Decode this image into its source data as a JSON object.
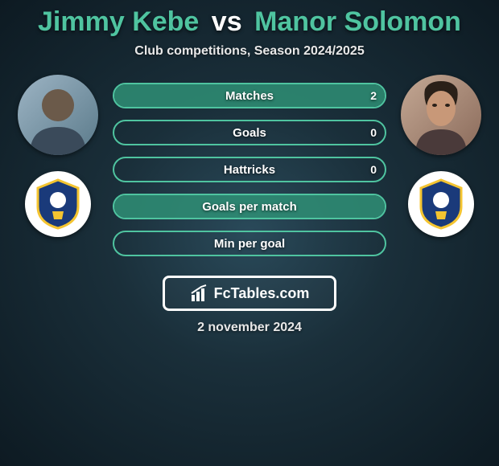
{
  "title": {
    "player1": "Jimmy Kebe",
    "vs": "vs",
    "player2": "Manor Solomon",
    "player1_color": "#4fc4a0",
    "player2_color": "#4fc4a0"
  },
  "subtitle": "Club competitions, Season 2024/2025",
  "accent_color": "#4fc4a0",
  "background": "radial-gradient(ellipse at center, #2a4a5a 0%, #1a2f3a 40%, #0d1a22 100%)",
  "bar_border_color": "#4fc4a0",
  "bar_fill_color": "#2f8f75",
  "stats": [
    {
      "label": "Matches",
      "p1_value": "",
      "p2_value": "2",
      "p1_pct": 0,
      "p2_pct": 100
    },
    {
      "label": "Goals",
      "p1_value": "",
      "p2_value": "0",
      "p1_pct": 0,
      "p2_pct": 0
    },
    {
      "label": "Hattricks",
      "p1_value": "",
      "p2_value": "0",
      "p1_pct": 0,
      "p2_pct": 0
    },
    {
      "label": "Goals per match",
      "p1_value": "",
      "p2_value": "",
      "p1_pct": 0,
      "p2_pct": 100
    },
    {
      "label": "Min per goal",
      "p1_value": "",
      "p2_value": "",
      "p1_pct": 0,
      "p2_pct": 0
    }
  ],
  "club_crest": {
    "shield_color": "#1a3a7a",
    "shield_border": "#f4c430",
    "detail_color": "#ffffff"
  },
  "footer": {
    "brand_prefix": "Fc",
    "brand_rest": "Tables.com",
    "date": "2 november 2024"
  }
}
